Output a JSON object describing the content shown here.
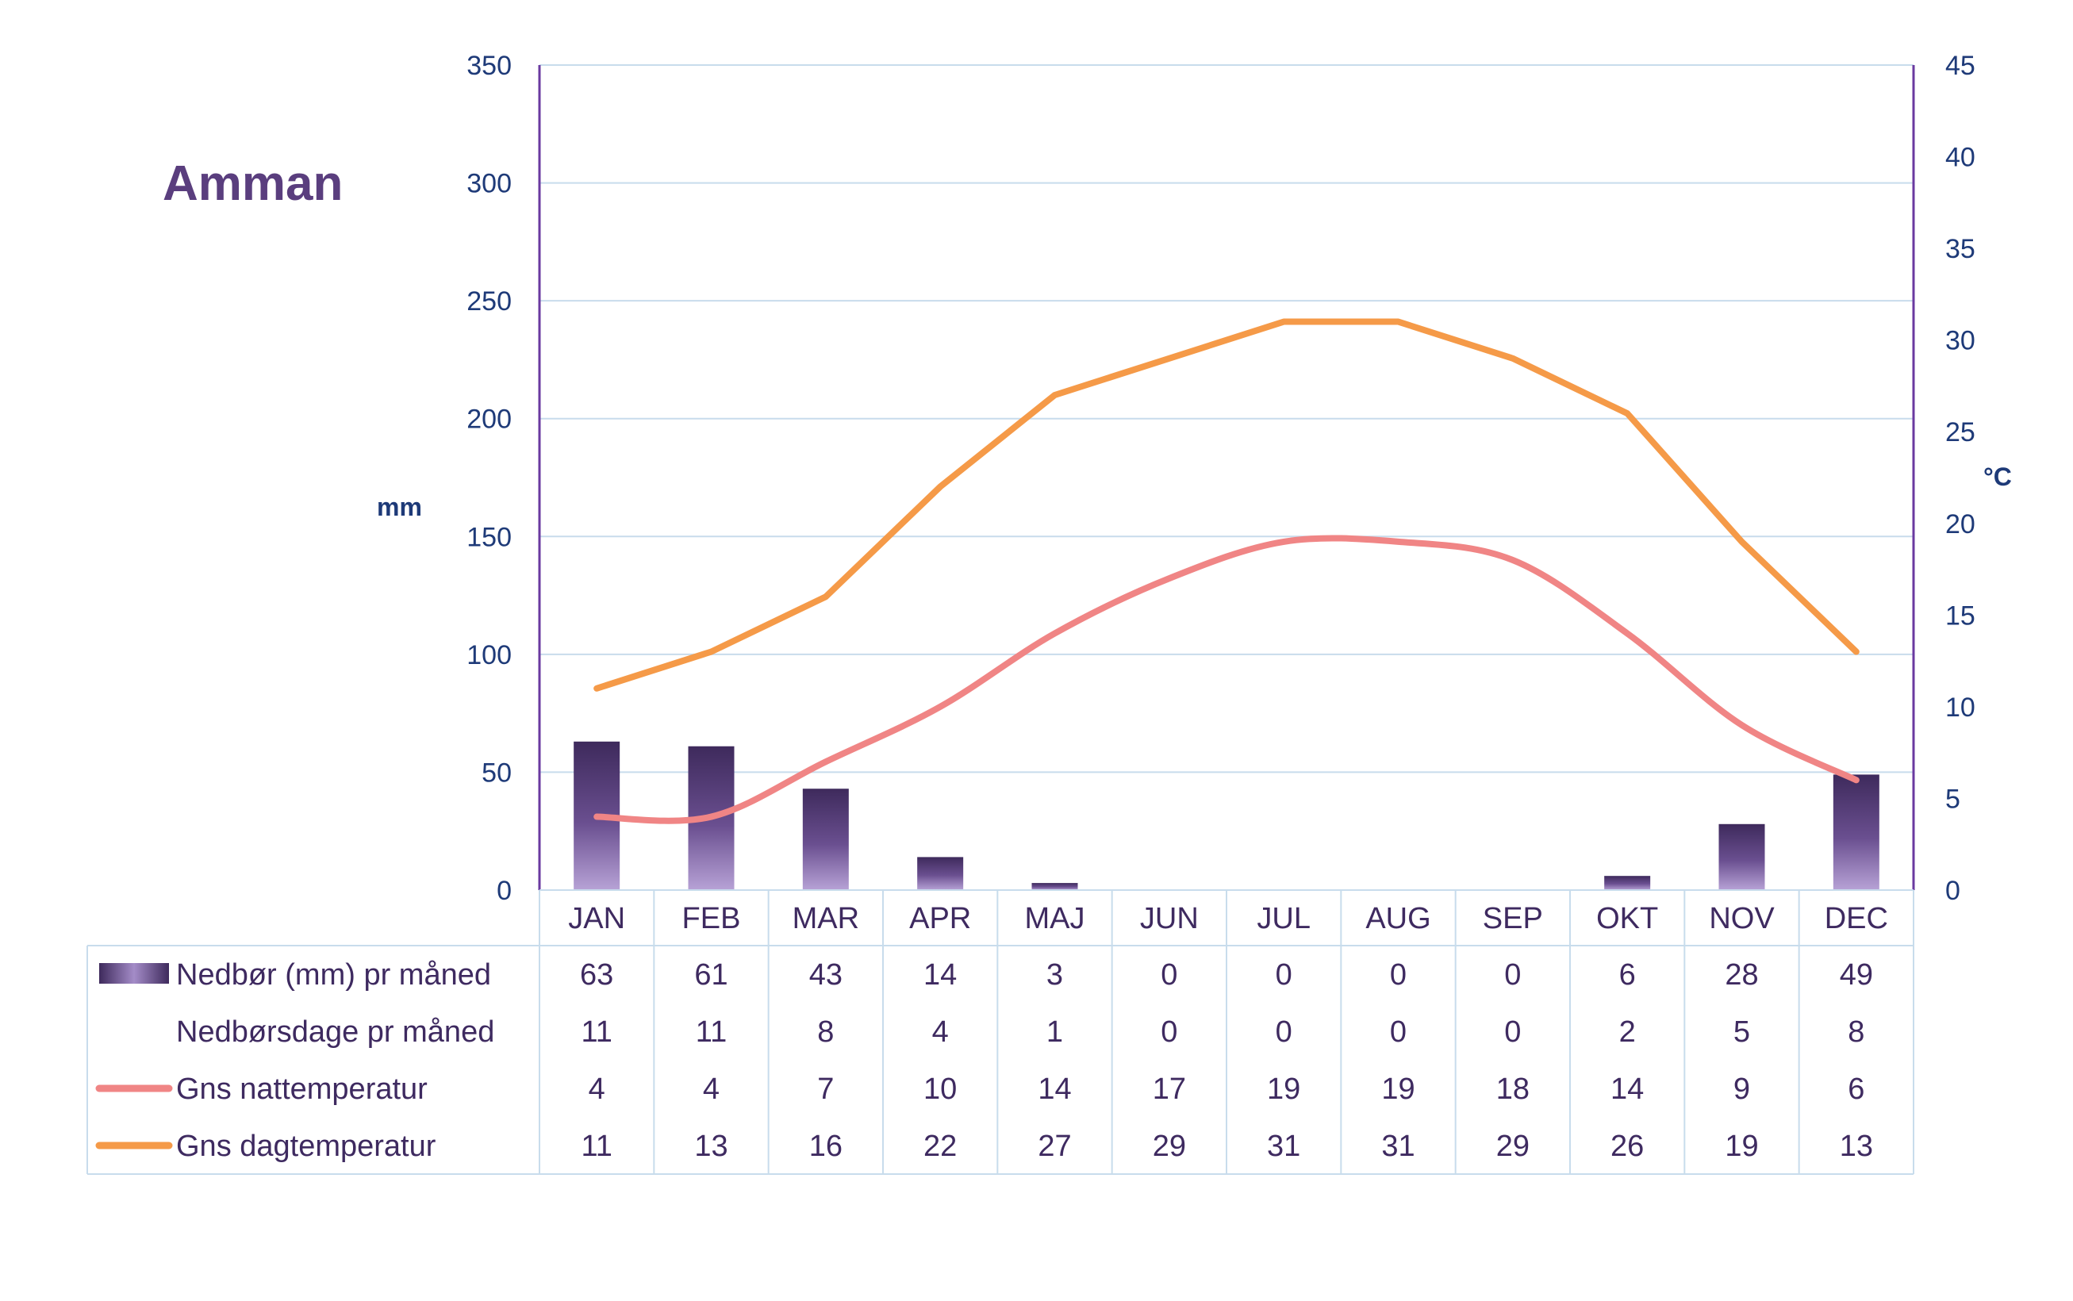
{
  "chart_data": {
    "type": "bar",
    "title": "Amman",
    "categories": [
      "JAN",
      "FEB",
      "MAR",
      "APR",
      "MAJ",
      "JUN",
      "JUL",
      "AUG",
      "SEP",
      "OKT",
      "NOV",
      "DEC"
    ],
    "y_left": {
      "label": "mm",
      "range": [
        0,
        350
      ],
      "ticks": [
        0,
        50,
        100,
        150,
        200,
        250,
        300,
        350
      ]
    },
    "y_right": {
      "label": "°C",
      "range": [
        0,
        45
      ],
      "ticks": [
        0,
        5,
        10,
        15,
        20,
        25,
        30,
        35,
        40,
        45
      ]
    },
    "grid": true,
    "legend": "table-below",
    "series": [
      {
        "name": "Nedbør (mm) pr måned",
        "type": "bar",
        "axis": "left",
        "color": "#5b4080",
        "values": [
          63,
          61,
          43,
          14,
          3,
          0,
          0,
          0,
          0,
          6,
          28,
          49
        ]
      },
      {
        "name": "Nedbørsdage pr måned",
        "type": "table",
        "values": [
          11,
          11,
          8,
          4,
          1,
          0,
          0,
          0,
          0,
          2,
          5,
          8
        ]
      },
      {
        "name": "Gns nattemperatur",
        "type": "line",
        "axis": "right",
        "color": "#f08585",
        "values": [
          4,
          4,
          7,
          10,
          14,
          17,
          19,
          19,
          18,
          14,
          9,
          6
        ]
      },
      {
        "name": "Gns dagtemperatur",
        "type": "line",
        "axis": "right",
        "color": "#f59a48",
        "values": [
          11,
          13,
          16,
          22,
          27,
          29,
          31,
          31,
          29,
          26,
          19,
          13
        ]
      }
    ]
  }
}
